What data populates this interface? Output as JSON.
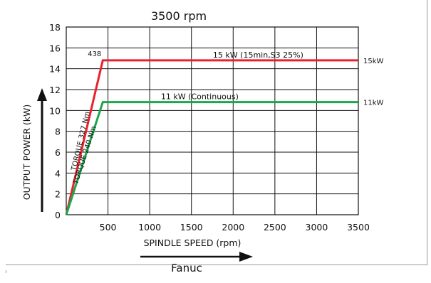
{
  "chart_data": {
    "type": "line",
    "title": "3500 rpm",
    "xlabel": "SPINDLE SPEED (rpm)",
    "ylabel": "OUTPUT POWER (kW)",
    "caption": "Fanuc",
    "xlim": [
      0,
      3500
    ],
    "ylim": [
      0,
      18
    ],
    "x_ticks": [
      500,
      1000,
      1500,
      2000,
      2500,
      3000,
      3500
    ],
    "x_tick_labels": [
      "500",
      "1000",
      "1500",
      "2000",
      "2500",
      "3000",
      "3500"
    ],
    "y_ticks": [
      0,
      2,
      4,
      6,
      8,
      10,
      12,
      14,
      16,
      18
    ],
    "y_tick_labels": [
      "0",
      "2",
      "4",
      "6",
      "8",
      "10",
      "12",
      "14",
      "16",
      "18"
    ],
    "grid": true,
    "series": [
      {
        "name": "15 kW (15min,S3 25%)",
        "color": "#e8222c",
        "points": [
          [
            0,
            0
          ],
          [
            438,
            14.8
          ],
          [
            3500,
            14.8
          ]
        ],
        "end_label": "15kW",
        "slope_label": "TORQUE 327 Nm",
        "knee_label": "438"
      },
      {
        "name": "11 kW (Continuous)",
        "color": "#1aa64a",
        "points": [
          [
            0,
            0
          ],
          [
            438,
            10.8
          ],
          [
            3500,
            10.8
          ]
        ],
        "end_label": "11kW",
        "slope_label": "TORQUE 240 Nm"
      }
    ]
  }
}
